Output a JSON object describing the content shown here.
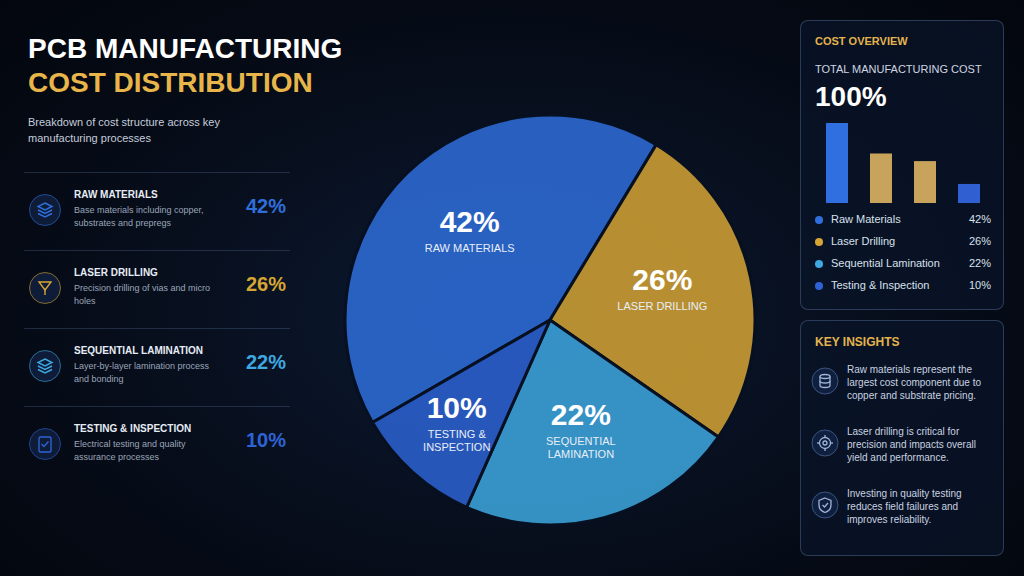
{
  "header": {
    "title": "PCB MANUFACTURING",
    "title_accent": "COST DISTRIBUTION",
    "subtitle": "Breakdown of cost structure across key manufacturing processes"
  },
  "list": {
    "descriptions": [
      "Base materials including copper, substrates and prepregs",
      "Precision drilling of vias and micro holes",
      "Layer-by-layer lamination process and bonding",
      "Electrical testing and quality assurance processes"
    ]
  },
  "chart_data": [
    {
      "type": "pie",
      "categories": [
        "RAW MATERIALS",
        "LASER DRILLING",
        "SEQUENTIAL LAMINATION",
        "TESTING & INSPECTION"
      ],
      "values": [
        42,
        26,
        22,
        10
      ],
      "value_labels": [
        "42%",
        "26%",
        "22%",
        "10%"
      ],
      "colors": [
        "#2f6fdc",
        "#d6a534",
        "#3ea8e0",
        "#2d63d4"
      ],
      "data_labels": true
    },
    {
      "type": "bar",
      "categories": [
        "Raw Materials",
        "Laser Drilling",
        "Sequential Lamination",
        "Testing & Inspection"
      ],
      "values": [
        42,
        26,
        22,
        10
      ],
      "value_labels": [
        "42%",
        "26%",
        "22%",
        "10%"
      ],
      "colors": [
        "#2f6fe0",
        "#c8a35c",
        "#c8a35c",
        "#2f5fd0"
      ],
      "ylim": [
        0,
        42
      ],
      "tick_labels": false
    }
  ],
  "overview": {
    "title": "COST OVERVIEW",
    "subtitle": "TOTAL MANUFACTURING COST",
    "total": {
      "value": 100,
      "label": "100%"
    }
  },
  "insights": {
    "title": "KEY INSIGHTS",
    "items": [
      "Raw materials represent the largest cost component due to copper and substrate pricing.",
      "Laser drilling is critical for precision and impacts overall yield and performance.",
      "Investing in quality testing reduces field failures and improves reliability."
    ]
  }
}
